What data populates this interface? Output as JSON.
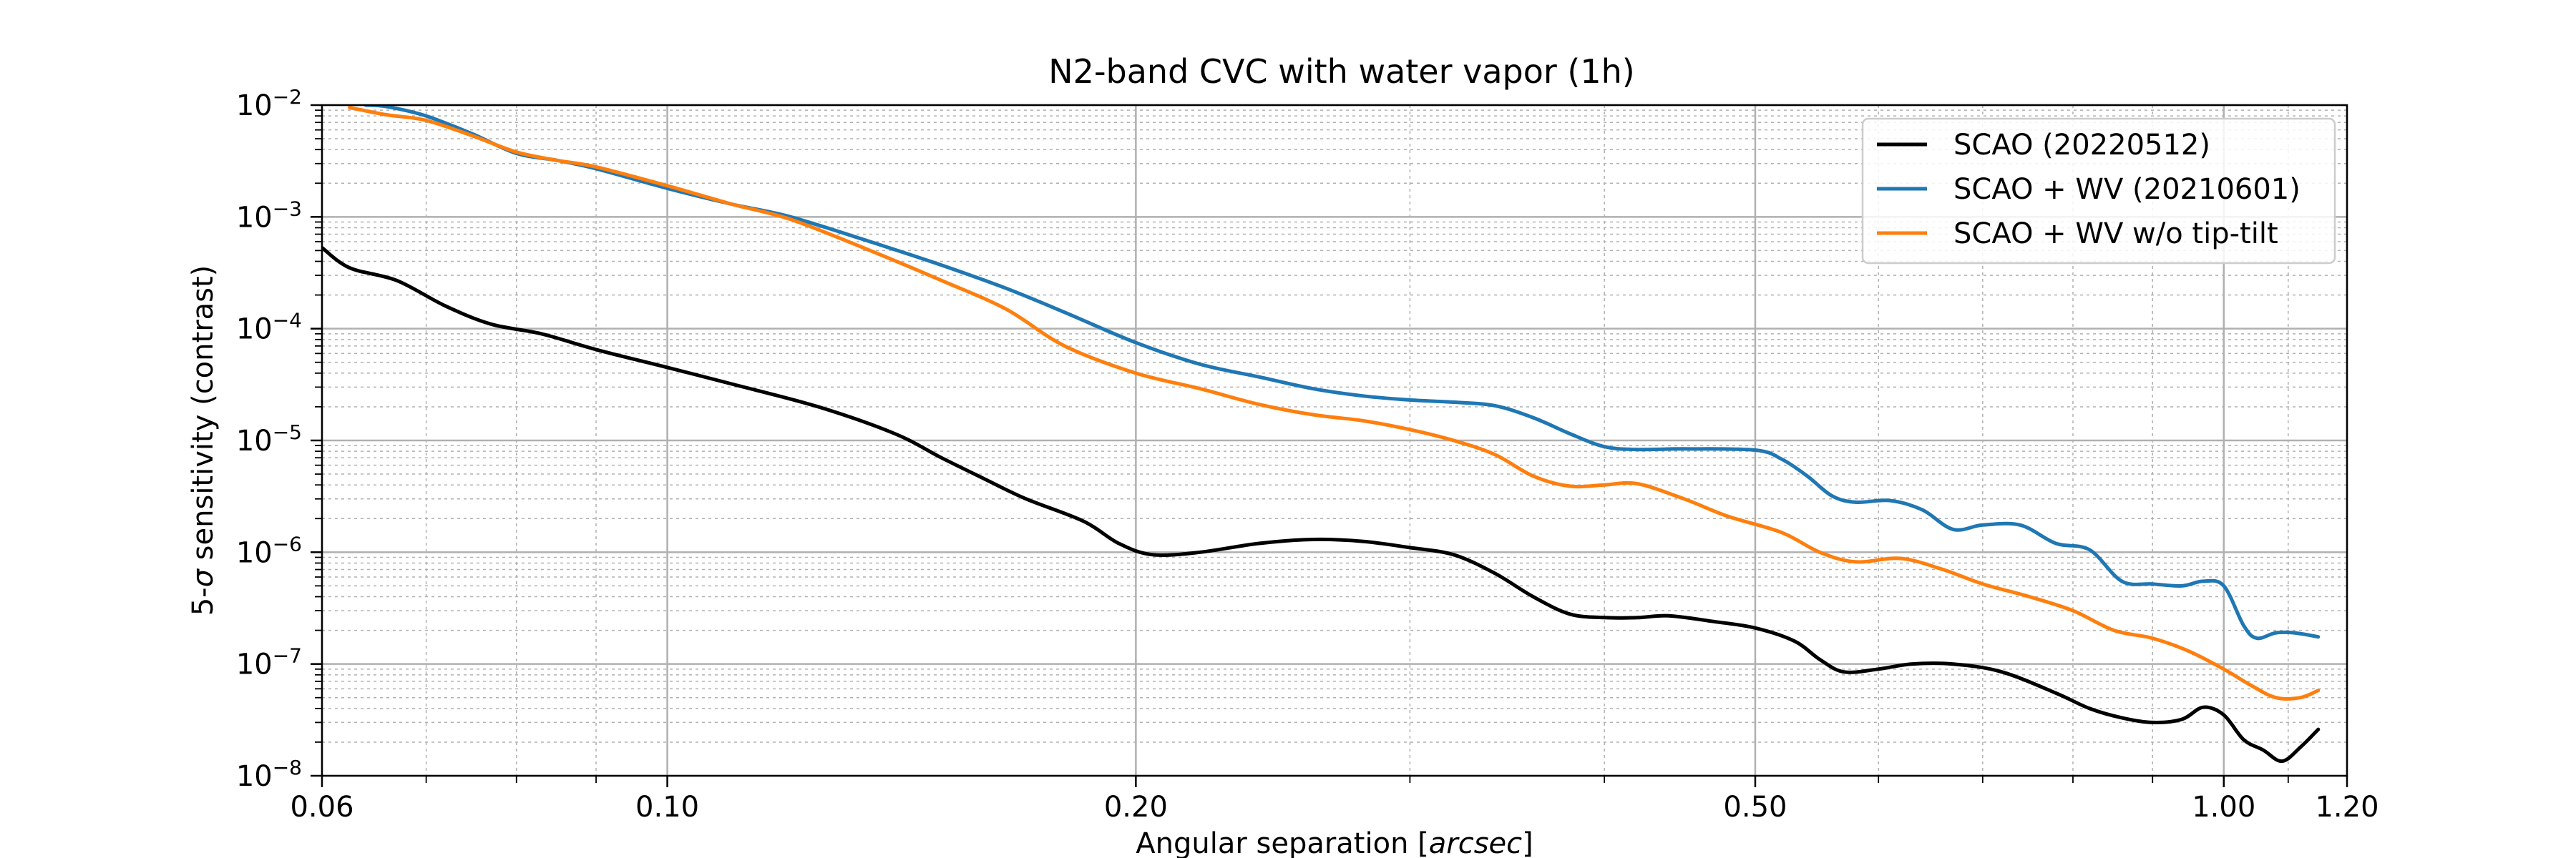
{
  "chart_data": {
    "type": "line",
    "title": "N2-band CVC with water vapor (1h)",
    "xlabel_prefix": "Angular separation [",
    "xlabel_unit": "arcsec",
    "xlabel_suffix": "]",
    "ylabel_prefix": "5-",
    "ylabel_sigma": "σ",
    "ylabel_suffix": " sensitivity (contrast)",
    "xscale": "log",
    "yscale": "log",
    "xlim": [
      0.06,
      1.2
    ],
    "ylim": [
      1e-08,
      0.01
    ],
    "grid": true,
    "legend_position": "top-right",
    "x_ticks": [
      {
        "value": 0.06,
        "label": "0.06"
      },
      {
        "value": 0.1,
        "label": "0.10"
      },
      {
        "value": 0.2,
        "label": "0.20"
      },
      {
        "value": 0.5,
        "label": "0.50"
      },
      {
        "value": 1.0,
        "label": "1.00"
      },
      {
        "value": 1.2,
        "label": "1.20"
      }
    ],
    "y_ticks": [
      {
        "value": 1e-08,
        "base": "10",
        "exp": "−8"
      },
      {
        "value": 1e-07,
        "base": "10",
        "exp": "−7"
      },
      {
        "value": 1e-06,
        "base": "10",
        "exp": "−6"
      },
      {
        "value": 1e-05,
        "base": "10",
        "exp": "−5"
      },
      {
        "value": 0.0001,
        "base": "10",
        "exp": "−4"
      },
      {
        "value": 0.001,
        "base": "10",
        "exp": "−3"
      },
      {
        "value": 0.01,
        "base": "10",
        "exp": "−2"
      }
    ],
    "series": [
      {
        "name": "SCAO (20220512)",
        "color": "#000000",
        "points": [
          [
            0.06,
            0.00053
          ],
          [
            0.0625,
            0.00035
          ],
          [
            0.067,
            0.00027
          ],
          [
            0.072,
            0.00016
          ],
          [
            0.077,
            0.00011
          ],
          [
            0.083,
            9e-05
          ],
          [
            0.09,
            6.5e-05
          ],
          [
            0.1,
            4.5e-05
          ],
          [
            0.11,
            3.2e-05
          ],
          [
            0.125,
            2e-05
          ],
          [
            0.14,
            1.15e-05
          ],
          [
            0.15,
            7e-06
          ],
          [
            0.16,
            4.5e-06
          ],
          [
            0.17,
            3e-06
          ],
          [
            0.185,
            1.9e-06
          ],
          [
            0.195,
            1.2e-06
          ],
          [
            0.205,
            9.5e-07
          ],
          [
            0.22,
            1e-06
          ],
          [
            0.24,
            1.2e-06
          ],
          [
            0.26,
            1.3e-06
          ],
          [
            0.28,
            1.25e-06
          ],
          [
            0.3,
            1.1e-06
          ],
          [
            0.32,
            9.5e-07
          ],
          [
            0.34,
            6.5e-07
          ],
          [
            0.36,
            4e-07
          ],
          [
            0.38,
            2.8e-07
          ],
          [
            0.4,
            2.6e-07
          ],
          [
            0.42,
            2.6e-07
          ],
          [
            0.44,
            2.7e-07
          ],
          [
            0.47,
            2.4e-07
          ],
          [
            0.5,
            2.1e-07
          ],
          [
            0.53,
            1.6e-07
          ],
          [
            0.55,
            1.1e-07
          ],
          [
            0.57,
            8.5e-08
          ],
          [
            0.6,
            9e-08
          ],
          [
            0.63,
            1e-07
          ],
          [
            0.67,
            1e-07
          ],
          [
            0.72,
            8.5e-08
          ],
          [
            0.78,
            5.5e-08
          ],
          [
            0.82,
            4e-08
          ],
          [
            0.86,
            3.3e-08
          ],
          [
            0.9,
            3e-08
          ],
          [
            0.94,
            3.2e-08
          ],
          [
            0.97,
            4.1e-08
          ],
          [
            1.0,
            3.5e-08
          ],
          [
            1.03,
            2.1e-08
          ],
          [
            1.06,
            1.7e-08
          ],
          [
            1.09,
            1.35e-08
          ],
          [
            1.12,
            1.8e-08
          ],
          [
            1.15,
            2.6e-08
          ]
        ]
      },
      {
        "name": "SCAO + WV (20210601)",
        "color": "#1f77b4",
        "points": [
          [
            0.064,
            0.01
          ],
          [
            0.066,
            0.0097
          ],
          [
            0.07,
            0.008
          ],
          [
            0.075,
            0.0055
          ],
          [
            0.08,
            0.0037
          ],
          [
            0.085,
            0.0032
          ],
          [
            0.09,
            0.0027
          ],
          [
            0.1,
            0.0018
          ],
          [
            0.11,
            0.0013
          ],
          [
            0.12,
            0.001
          ],
          [
            0.135,
            0.0006
          ],
          [
            0.15,
            0.00037
          ],
          [
            0.165,
            0.00023
          ],
          [
            0.18,
            0.00014
          ],
          [
            0.2,
            7.5e-05
          ],
          [
            0.22,
            4.8e-05
          ],
          [
            0.24,
            3.7e-05
          ],
          [
            0.26,
            2.9e-05
          ],
          [
            0.28,
            2.5e-05
          ],
          [
            0.3,
            2.3e-05
          ],
          [
            0.32,
            2.2e-05
          ],
          [
            0.34,
            2.05e-05
          ],
          [
            0.36,
            1.6e-05
          ],
          [
            0.38,
            1.15e-05
          ],
          [
            0.4,
            8.8e-06
          ],
          [
            0.42,
            8.3e-06
          ],
          [
            0.45,
            8.4e-06
          ],
          [
            0.5,
            8.2e-06
          ],
          [
            0.52,
            6.8e-06
          ],
          [
            0.54,
            4.8e-06
          ],
          [
            0.56,
            3.2e-06
          ],
          [
            0.58,
            2.8e-06
          ],
          [
            0.61,
            2.9e-06
          ],
          [
            0.64,
            2.4e-06
          ],
          [
            0.67,
            1.6e-06
          ],
          [
            0.7,
            1.75e-06
          ],
          [
            0.74,
            1.75e-06
          ],
          [
            0.78,
            1.2e-06
          ],
          [
            0.82,
            1.05e-06
          ],
          [
            0.86,
            5.5e-07
          ],
          [
            0.9,
            5.2e-07
          ],
          [
            0.94,
            5e-07
          ],
          [
            0.97,
            5.5e-07
          ],
          [
            1.0,
            5e-07
          ],
          [
            1.03,
            2.2e-07
          ],
          [
            1.05,
            1.7e-07
          ],
          [
            1.08,
            1.9e-07
          ],
          [
            1.11,
            1.9e-07
          ],
          [
            1.15,
            1.75e-07
          ]
        ]
      },
      {
        "name": "SCAO + WV w/o tip-tilt",
        "color": "#ff7f0e",
        "points": [
          [
            0.0625,
            0.0095
          ],
          [
            0.066,
            0.0082
          ],
          [
            0.07,
            0.0073
          ],
          [
            0.075,
            0.0053
          ],
          [
            0.08,
            0.0038
          ],
          [
            0.085,
            0.0032
          ],
          [
            0.09,
            0.0028
          ],
          [
            0.1,
            0.0019
          ],
          [
            0.11,
            0.0013
          ],
          [
            0.12,
            0.00095
          ],
          [
            0.135,
            0.0005
          ],
          [
            0.15,
            0.00027
          ],
          [
            0.165,
            0.00015
          ],
          [
            0.18,
            7e-05
          ],
          [
            0.2,
            4e-05
          ],
          [
            0.22,
            2.9e-05
          ],
          [
            0.24,
            2.1e-05
          ],
          [
            0.26,
            1.7e-05
          ],
          [
            0.28,
            1.5e-05
          ],
          [
            0.3,
            1.25e-05
          ],
          [
            0.32,
            1e-05
          ],
          [
            0.34,
            7.5e-06
          ],
          [
            0.36,
            4.8e-06
          ],
          [
            0.38,
            3.9e-06
          ],
          [
            0.4,
            4e-06
          ],
          [
            0.42,
            4.1e-06
          ],
          [
            0.45,
            3e-06
          ],
          [
            0.48,
            2.1e-06
          ],
          [
            0.52,
            1.5e-06
          ],
          [
            0.55,
            1e-06
          ],
          [
            0.58,
            8.2e-07
          ],
          [
            0.62,
            8.8e-07
          ],
          [
            0.66,
            7e-07
          ],
          [
            0.7,
            5.2e-07
          ],
          [
            0.75,
            4e-07
          ],
          [
            0.8,
            3e-07
          ],
          [
            0.85,
            2e-07
          ],
          [
            0.9,
            1.7e-07
          ],
          [
            0.95,
            1.3e-07
          ],
          [
            1.0,
            9e-08
          ],
          [
            1.04,
            6.5e-08
          ],
          [
            1.08,
            5e-08
          ],
          [
            1.12,
            5e-08
          ],
          [
            1.15,
            5.8e-08
          ]
        ]
      }
    ]
  }
}
